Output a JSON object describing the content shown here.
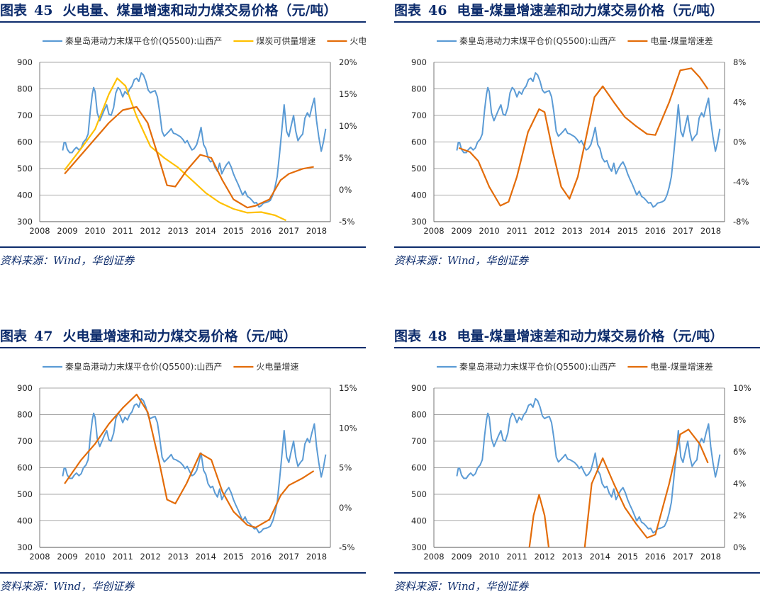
{
  "source_text": "资料来源：Wind，华创证券",
  "colors": {
    "blue": "#5b9bd5",
    "orange": "#e36c09",
    "yellow": "#ffc000",
    "navy": "#0d2c6c"
  },
  "panels": [
    {
      "title_prefix": "图表",
      "title_number": "45",
      "title_text": "火电量、煤量增速和动力煤交易价格（元/吨）",
      "chart_data": {
        "type": "line",
        "x_ticks": [
          "2008",
          "2009",
          "2010",
          "2011",
          "2012",
          "2013",
          "2014",
          "2015",
          "2016",
          "2017",
          "2018"
        ],
        "xlim": [
          2008.0,
          2018.5
        ],
        "left_axis": {
          "ylim": [
            300,
            900
          ],
          "ticks": [
            "300",
            "400",
            "500",
            "600",
            "700",
            "800",
            "900"
          ]
        },
        "right_axis": {
          "ylim": [
            -5,
            20
          ],
          "ticks": [
            "-5%",
            "0%",
            "5%",
            "10%",
            "15%",
            "20%"
          ]
        },
        "series": [
          {
            "name": "秦皇岛港动力末煤平仓价(Q5500):山西产",
            "axis": "left",
            "color": "blue",
            "key": "price"
          },
          {
            "name": "煤炭可供量增速",
            "axis": "right",
            "color": "yellow",
            "points": [
              [
                2008.9,
                3.1
              ],
              [
                2009.5,
                6.5
              ],
              [
                2010.0,
                9.5
              ],
              [
                2010.5,
                15.0
              ],
              [
                2010.8,
                17.5
              ],
              [
                2011.1,
                16.3
              ],
              [
                2011.5,
                11.5
              ],
              [
                2012.0,
                6.8
              ],
              [
                2012.5,
                5.0
              ],
              [
                2013.0,
                3.5
              ],
              [
                2013.5,
                1.5
              ],
              [
                2014.0,
                -0.5
              ],
              [
                2014.5,
                -2.0
              ],
              [
                2015.0,
                -3.0
              ],
              [
                2015.5,
                -3.6
              ],
              [
                2016.0,
                -3.5
              ],
              [
                2016.5,
                -4.0
              ],
              [
                2016.9,
                -4.8
              ]
            ]
          },
          {
            "name": "火电量增速",
            "axis": "right",
            "color": "orange",
            "points": [
              [
                2008.9,
                2.5
              ],
              [
                2009.5,
                5.5
              ],
              [
                2010.0,
                8.0
              ],
              [
                2010.5,
                10.5
              ],
              [
                2011.0,
                12.5
              ],
              [
                2011.5,
                13.0
              ],
              [
                2011.9,
                10.5
              ],
              [
                2012.3,
                5.0
              ],
              [
                2012.6,
                0.7
              ],
              [
                2012.9,
                0.5
              ],
              [
                2013.3,
                3.0
              ],
              [
                2013.8,
                5.5
              ],
              [
                2014.2,
                5.0
              ],
              [
                2014.6,
                1.5
              ],
              [
                2015.0,
                -1.5
              ],
              [
                2015.5,
                -2.8
              ],
              [
                2015.8,
                -2.5
              ],
              [
                2016.3,
                -1.5
              ],
              [
                2016.7,
                1.5
              ],
              [
                2017.0,
                2.5
              ],
              [
                2017.5,
                3.3
              ],
              [
                2017.9,
                3.6
              ]
            ]
          }
        ]
      }
    },
    {
      "title_prefix": "图表",
      "title_number": "46",
      "title_text": "电量-煤量增速差和动力煤交易价格（元/吨）",
      "chart_data": {
        "type": "line",
        "x_ticks": [
          "2008",
          "2009",
          "2010",
          "2011",
          "2012",
          "2013",
          "2014",
          "2015",
          "2016",
          "2017",
          "2018"
        ],
        "xlim": [
          2008.0,
          2018.5
        ],
        "left_axis": {
          "ylim": [
            300,
            900
          ],
          "ticks": [
            "300",
            "400",
            "500",
            "600",
            "700",
            "800",
            "900"
          ]
        },
        "right_axis": {
          "ylim": [
            -8,
            8
          ],
          "ticks": [
            "-8%",
            "-4%",
            "0%",
            "4%",
            "8%"
          ]
        },
        "series": [
          {
            "name": "秦皇岛港动力末煤平仓价(Q5500):山西产",
            "axis": "left",
            "color": "blue",
            "key": "price"
          },
          {
            "name": "电量-煤量增速差",
            "axis": "right",
            "color": "orange",
            "points": [
              [
                2008.9,
                -0.6
              ],
              [
                2009.3,
                -1.0
              ],
              [
                2009.6,
                -1.9
              ],
              [
                2010.0,
                -4.5
              ],
              [
                2010.4,
                -6.4
              ],
              [
                2010.7,
                -6.0
              ],
              [
                2011.0,
                -3.5
              ],
              [
                2011.4,
                1.0
              ],
              [
                2011.8,
                3.3
              ],
              [
                2012.0,
                3.0
              ],
              [
                2012.3,
                -1.0
              ],
              [
                2012.6,
                -4.5
              ],
              [
                2012.9,
                -5.7
              ],
              [
                2013.2,
                -3.5
              ],
              [
                2013.5,
                0.5
              ],
              [
                2013.8,
                4.5
              ],
              [
                2014.1,
                5.6
              ],
              [
                2014.5,
                4.0
              ],
              [
                2014.9,
                2.5
              ],
              [
                2015.3,
                1.6
              ],
              [
                2015.7,
                0.8
              ],
              [
                2016.0,
                0.7
              ],
              [
                2016.5,
                4.0
              ],
              [
                2016.9,
                7.2
              ],
              [
                2017.3,
                7.4
              ],
              [
                2017.6,
                6.5
              ],
              [
                2017.9,
                5.3
              ]
            ]
          }
        ]
      }
    },
    {
      "title_prefix": "图表",
      "title_number": "47",
      "title_text": "火电量增速和动力煤交易价格（元/吨）",
      "chart_data": {
        "type": "line",
        "x_ticks": [
          "2008",
          "2009",
          "2010",
          "2011",
          "2012",
          "2013",
          "2014",
          "2015",
          "2016",
          "2017",
          "2018"
        ],
        "xlim": [
          2008.0,
          2018.5
        ],
        "left_axis": {
          "ylim": [
            300,
            900
          ],
          "ticks": [
            "300",
            "400",
            "500",
            "600",
            "700",
            "800",
            "900"
          ]
        },
        "right_axis": {
          "ylim": [
            -5,
            15
          ],
          "ticks": [
            "-5%",
            "0%",
            "5%",
            "10%",
            "15%"
          ]
        },
        "series": [
          {
            "name": "秦皇岛港动力末煤平仓价(Q5500):山西产",
            "axis": "left",
            "color": "blue",
            "key": "price"
          },
          {
            "name": "火电量增速",
            "axis": "right",
            "color": "orange",
            "points": [
              [
                2008.9,
                3.0
              ],
              [
                2009.5,
                6.0
              ],
              [
                2010.0,
                8.0
              ],
              [
                2010.5,
                10.5
              ],
              [
                2011.0,
                12.5
              ],
              [
                2011.5,
                14.2
              ],
              [
                2011.9,
                12.0
              ],
              [
                2012.3,
                6.0
              ],
              [
                2012.6,
                1.0
              ],
              [
                2012.9,
                0.5
              ],
              [
                2013.3,
                3.0
              ],
              [
                2013.8,
                6.8
              ],
              [
                2014.2,
                6.0
              ],
              [
                2014.6,
                2.0
              ],
              [
                2015.0,
                -0.5
              ],
              [
                2015.5,
                -2.2
              ],
              [
                2015.8,
                -2.5
              ],
              [
                2016.3,
                -1.5
              ],
              [
                2016.7,
                1.5
              ],
              [
                2017.0,
                2.8
              ],
              [
                2017.5,
                3.7
              ],
              [
                2017.9,
                4.6
              ]
            ]
          }
        ]
      }
    },
    {
      "title_prefix": "图表",
      "title_number": "48",
      "title_text": "电量-煤量增速差和动力煤交易价格（元/吨）",
      "chart_data": {
        "type": "line",
        "x_ticks": [
          "2008",
          "2009",
          "2010",
          "2011",
          "2012",
          "2013",
          "2014",
          "2015",
          "2016",
          "2017",
          "2018"
        ],
        "xlim": [
          2008.0,
          2018.5
        ],
        "left_axis": {
          "ylim": [
            300,
            900
          ],
          "ticks": [
            "300",
            "400",
            "500",
            "600",
            "700",
            "800",
            "900"
          ]
        },
        "right_axis": {
          "ylim": [
            0,
            10
          ],
          "ticks": [
            "0%",
            "2%",
            "4%",
            "6%",
            "8%",
            "10%"
          ]
        },
        "series": [
          {
            "name": "秦皇岛港动力末煤平仓价(Q5500):山西产",
            "axis": "left",
            "color": "blue",
            "key": "price"
          },
          {
            "name": "电量-煤量增速差",
            "axis": "right",
            "color": "orange",
            "segments": [
              [
                [
                  2011.45,
                  0.0
                ],
                [
                  2011.6,
                  2.0
                ],
                [
                  2011.8,
                  3.3
                ],
                [
                  2012.0,
                  2.0
                ],
                [
                  2012.15,
                  0.0
                ]
              ],
              [
                [
                  2013.45,
                  0.0
                ],
                [
                  2013.7,
                  4.0
                ],
                [
                  2014.1,
                  5.6
                ],
                [
                  2014.5,
                  4.0
                ],
                [
                  2014.9,
                  2.5
                ],
                [
                  2015.3,
                  1.5
                ],
                [
                  2015.7,
                  0.6
                ],
                [
                  2016.0,
                  0.8
                ],
                [
                  2016.5,
                  4.0
                ],
                [
                  2016.9,
                  7.1
                ],
                [
                  2017.2,
                  7.4
                ],
                [
                  2017.6,
                  6.5
                ],
                [
                  2017.9,
                  5.3
                ]
              ]
            ]
          }
        ]
      }
    }
  ],
  "price_series": [
    [
      2008.83,
      568
    ],
    [
      2008.88,
      598
    ],
    [
      2008.93,
      598
    ],
    [
      2009.0,
      572
    ],
    [
      2009.08,
      560
    ],
    [
      2009.17,
      560
    ],
    [
      2009.25,
      572
    ],
    [
      2009.33,
      580
    ],
    [
      2009.42,
      570
    ],
    [
      2009.5,
      578
    ],
    [
      2009.58,
      600
    ],
    [
      2009.67,
      610
    ],
    [
      2009.75,
      630
    ],
    [
      2009.83,
      720
    ],
    [
      2009.9,
      780
    ],
    [
      2009.95,
      805
    ],
    [
      2010.0,
      790
    ],
    [
      2010.08,
      710
    ],
    [
      2010.17,
      680
    ],
    [
      2010.25,
      700
    ],
    [
      2010.33,
      720
    ],
    [
      2010.42,
      740
    ],
    [
      2010.5,
      705
    ],
    [
      2010.58,
      700
    ],
    [
      2010.67,
      730
    ],
    [
      2010.75,
      785
    ],
    [
      2010.83,
      805
    ],
    [
      2010.9,
      798
    ],
    [
      2011.0,
      770
    ],
    [
      2011.08,
      790
    ],
    [
      2011.17,
      780
    ],
    [
      2011.25,
      800
    ],
    [
      2011.33,
      810
    ],
    [
      2011.42,
      835
    ],
    [
      2011.5,
      840
    ],
    [
      2011.58,
      828
    ],
    [
      2011.67,
      860
    ],
    [
      2011.75,
      852
    ],
    [
      2011.83,
      830
    ],
    [
      2011.92,
      795
    ],
    [
      2012.0,
      785
    ],
    [
      2012.08,
      790
    ],
    [
      2012.17,
      793
    ],
    [
      2012.25,
      770
    ],
    [
      2012.33,
      715
    ],
    [
      2012.42,
      640
    ],
    [
      2012.5,
      622
    ],
    [
      2012.58,
      630
    ],
    [
      2012.67,
      640
    ],
    [
      2012.75,
      650
    ],
    [
      2012.83,
      633
    ],
    [
      2012.92,
      630
    ],
    [
      2013.0,
      625
    ],
    [
      2013.08,
      620
    ],
    [
      2013.17,
      610
    ],
    [
      2013.25,
      597
    ],
    [
      2013.33,
      605
    ],
    [
      2013.42,
      585
    ],
    [
      2013.5,
      570
    ],
    [
      2013.58,
      575
    ],
    [
      2013.67,
      590
    ],
    [
      2013.75,
      620
    ],
    [
      2013.83,
      655
    ],
    [
      2013.92,
      590
    ],
    [
      2014.0,
      575
    ],
    [
      2014.08,
      540
    ],
    [
      2014.17,
      525
    ],
    [
      2014.25,
      530
    ],
    [
      2014.33,
      505
    ],
    [
      2014.42,
      490
    ],
    [
      2014.5,
      520
    ],
    [
      2014.58,
      480
    ],
    [
      2014.67,
      500
    ],
    [
      2014.75,
      515
    ],
    [
      2014.83,
      525
    ],
    [
      2014.92,
      505
    ],
    [
      2015.0,
      480
    ],
    [
      2015.08,
      460
    ],
    [
      2015.17,
      440
    ],
    [
      2015.25,
      420
    ],
    [
      2015.33,
      400
    ],
    [
      2015.42,
      415
    ],
    [
      2015.5,
      395
    ],
    [
      2015.58,
      390
    ],
    [
      2015.67,
      380
    ],
    [
      2015.75,
      370
    ],
    [
      2015.83,
      372
    ],
    [
      2015.92,
      355
    ],
    [
      2016.0,
      360
    ],
    [
      2016.08,
      370
    ],
    [
      2016.17,
      372
    ],
    [
      2016.25,
      375
    ],
    [
      2016.33,
      380
    ],
    [
      2016.42,
      400
    ],
    [
      2016.5,
      430
    ],
    [
      2016.58,
      470
    ],
    [
      2016.67,
      560
    ],
    [
      2016.75,
      650
    ],
    [
      2016.83,
      740
    ],
    [
      2016.92,
      640
    ],
    [
      2017.0,
      620
    ],
    [
      2017.08,
      660
    ],
    [
      2017.17,
      700
    ],
    [
      2017.25,
      640
    ],
    [
      2017.33,
      605
    ],
    [
      2017.42,
      620
    ],
    [
      2017.5,
      630
    ],
    [
      2017.58,
      690
    ],
    [
      2017.67,
      710
    ],
    [
      2017.75,
      695
    ],
    [
      2017.83,
      730
    ],
    [
      2017.92,
      765
    ],
    [
      2018.0,
      680
    ],
    [
      2018.08,
      620
    ],
    [
      2018.17,
      565
    ],
    [
      2018.25,
      600
    ],
    [
      2018.33,
      650
    ]
  ]
}
